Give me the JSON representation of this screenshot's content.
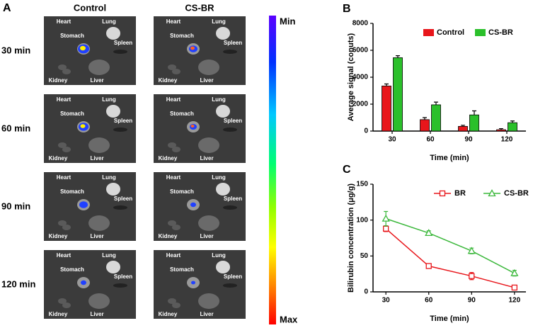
{
  "panel_a": {
    "label": "A",
    "columns": [
      "Control",
      "CS-BR"
    ],
    "rows": [
      "30 min",
      "60 min",
      "90 min",
      "120 min"
    ],
    "organs": [
      "Heart",
      "Lung",
      "Stomach",
      "Spleen",
      "Kidney",
      "Liver"
    ],
    "colorbar": {
      "min_label": "Min",
      "max_label": "Max"
    }
  },
  "chart_data": [
    {
      "type": "bar",
      "panel_label": "B",
      "xlabel": "Time (min)",
      "ylabel": "Average signal (conuts)",
      "categories": [
        "30",
        "60",
        "90",
        "120"
      ],
      "series": [
        {
          "name": "Control",
          "color": "#e8161b",
          "values": [
            3350,
            850,
            350,
            100
          ],
          "errors": [
            150,
            150,
            80,
            80
          ]
        },
        {
          "name": "CS-BR",
          "color": "#2bc02b",
          "values": [
            5450,
            1950,
            1200,
            620
          ],
          "errors": [
            150,
            200,
            300,
            130
          ]
        }
      ],
      "ylim": [
        0,
        8000
      ],
      "yticks": [
        0,
        2000,
        4000,
        6000,
        8000
      ],
      "legend": "upper right"
    },
    {
      "type": "line",
      "panel_label": "C",
      "xlabel": "Time (min)",
      "ylabel": "Bilirubin concentration (μg/g)",
      "x": [
        30,
        60,
        90,
        120
      ],
      "xlim": [
        21,
        128
      ],
      "xticks": [
        30,
        60,
        90,
        120
      ],
      "series": [
        {
          "name": "BR",
          "color": "#e8161b",
          "marker": "square",
          "values": [
            88,
            36,
            22,
            6
          ],
          "errors": [
            4,
            3,
            5,
            3
          ]
        },
        {
          "name": "CS-BR",
          "color": "#3cb83c",
          "marker": "triangle",
          "values": [
            102,
            82,
            57,
            26
          ],
          "errors": [
            10,
            3,
            4,
            4
          ]
        }
      ],
      "ylim": [
        0,
        150
      ],
      "yticks": [
        0,
        50,
        100,
        150
      ],
      "legend": "upper right"
    }
  ]
}
